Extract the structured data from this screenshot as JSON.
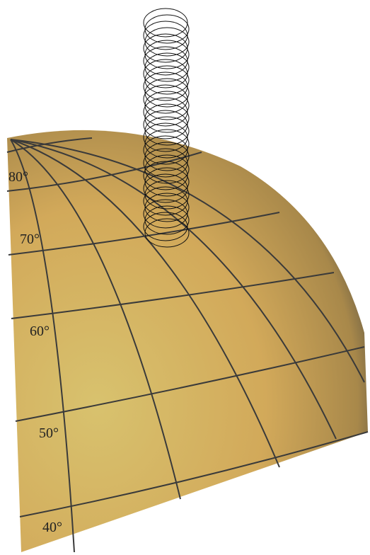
{
  "labels": [
    "80°",
    "70°",
    "60°",
    "50°",
    "40°"
  ]
}
